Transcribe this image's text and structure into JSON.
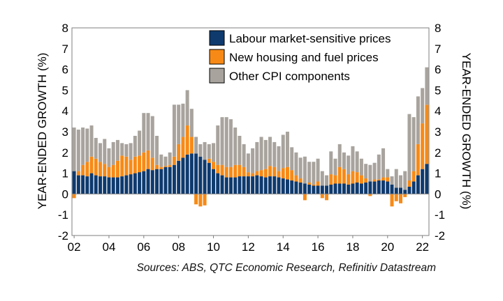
{
  "colors": {
    "labour": "#0e3a6e",
    "housing": "#f78a16",
    "other": "#a8a39d",
    "frame": "#7f7f7f",
    "grid": "#d9d9d9"
  },
  "source_note": "Sources: ABS, QTC Economic Research, Refinitiv Datastream",
  "chart_data": {
    "type": "bar",
    "stacked": true,
    "title": "",
    "ylabel_left": "YEAR-ENDED GROWTH (%)",
    "ylabel_right": "YEAR-ENDED GROWTH (%)",
    "ylim": [
      -2,
      8
    ],
    "yticks": [
      "-2",
      "-1",
      "0",
      "1",
      "2",
      "3",
      "4",
      "5",
      "6",
      "7",
      "8"
    ],
    "xticks": [
      {
        "label": "02",
        "q": 0
      },
      {
        "label": "04",
        "q": 8
      },
      {
        "label": "06",
        "q": 16
      },
      {
        "label": "08",
        "q": 24
      },
      {
        "label": "10",
        "q": 32
      },
      {
        "label": "12",
        "q": 40
      },
      {
        "label": "14",
        "q": 48
      },
      {
        "label": "16",
        "q": 56
      },
      {
        "label": "18",
        "q": 64
      },
      {
        "label": "20",
        "q": 72
      },
      {
        "label": "22",
        "q": 80
      }
    ],
    "grid": false,
    "legend_position": "top-right",
    "series": [
      {
        "name": "Labour market-sensitive prices",
        "values": [
          1.1,
          0.9,
          0.9,
          0.85,
          1.0,
          0.9,
          0.85,
          0.85,
          0.8,
          0.8,
          0.8,
          0.85,
          0.9,
          0.95,
          1.0,
          1.05,
          1.1,
          1.2,
          1.15,
          1.2,
          1.2,
          1.3,
          1.3,
          1.4,
          1.6,
          1.75,
          1.9,
          1.95,
          1.95,
          1.8,
          1.65,
          1.5,
          1.2,
          1.0,
          0.9,
          0.8,
          0.8,
          0.8,
          0.85,
          0.85,
          0.85,
          0.85,
          0.9,
          0.85,
          0.8,
          0.85,
          0.85,
          0.8,
          0.75,
          0.7,
          0.65,
          0.6,
          0.55,
          0.5,
          0.45,
          0.4,
          0.4,
          0.4,
          0.4,
          0.45,
          0.5,
          0.5,
          0.5,
          0.45,
          0.5,
          0.55,
          0.5,
          0.55,
          0.6,
          0.6,
          0.65,
          0.65,
          0.6,
          0.45,
          0.3,
          0.3,
          0.2,
          0.35,
          0.6,
          0.9,
          1.2,
          1.45
        ]
      },
      {
        "name": "New housing and fuel prices",
        "values": [
          -0.2,
          0.2,
          0.5,
          0.7,
          0.8,
          0.8,
          0.7,
          0.6,
          0.5,
          0.6,
          0.8,
          1.0,
          0.9,
          0.7,
          0.8,
          0.8,
          0.9,
          0.9,
          0.6,
          0.2,
          0.1,
          0.05,
          0.1,
          0.4,
          0.8,
          1.0,
          1.4,
          0.8,
          -0.5,
          -0.6,
          -0.55,
          0.2,
          0.35,
          0.4,
          0.5,
          0.5,
          0.5,
          0.6,
          0.55,
          0.45,
          0.2,
          0.15,
          0.2,
          0.3,
          0.4,
          0.5,
          0.45,
          0.3,
          0.5,
          0.6,
          0.5,
          0.3,
          0.2,
          -0.3,
          0.1,
          0.05,
          0.2,
          -0.2,
          -0.3,
          0.5,
          0.4,
          0.8,
          0.7,
          0.5,
          0.6,
          0.5,
          0.4,
          0.2,
          -0.1,
          0.1,
          0.05,
          0.15,
          0.2,
          -0.6,
          -0.35,
          -0.45,
          -0.15,
          0.3,
          0.5,
          1.5,
          2.2,
          2.85
        ]
      },
      {
        "name": "Other CPI components",
        "values": [
          2.1,
          2.0,
          1.8,
          1.6,
          1.5,
          1.0,
          0.9,
          1.2,
          0.9,
          1.1,
          1.0,
          0.6,
          0.6,
          0.8,
          1.0,
          1.2,
          1.9,
          1.8,
          2.0,
          1.4,
          0.6,
          0.45,
          0.6,
          2.5,
          1.9,
          1.6,
          1.7,
          1.35,
          0.8,
          0.6,
          0.85,
          0.7,
          0.9,
          1.9,
          2.3,
          2.4,
          2.3,
          1.8,
          1.4,
          1.1,
          0.9,
          1.2,
          1.4,
          1.6,
          1.4,
          1.4,
          1.2,
          1.2,
          1.6,
          1.7,
          1.1,
          1.1,
          1.0,
          1.3,
          1.0,
          1.1,
          1.1,
          0.7,
          0.5,
          1.1,
          0.8,
          1.1,
          0.8,
          0.9,
          1.2,
          1.0,
          0.8,
          0.7,
          0.8,
          0.8,
          1.2,
          1.4,
          0.4,
          0.4,
          0.9,
          0.6,
          0.9,
          3.2,
          2.6,
          2.3,
          1.7,
          1.8
        ]
      }
    ]
  }
}
